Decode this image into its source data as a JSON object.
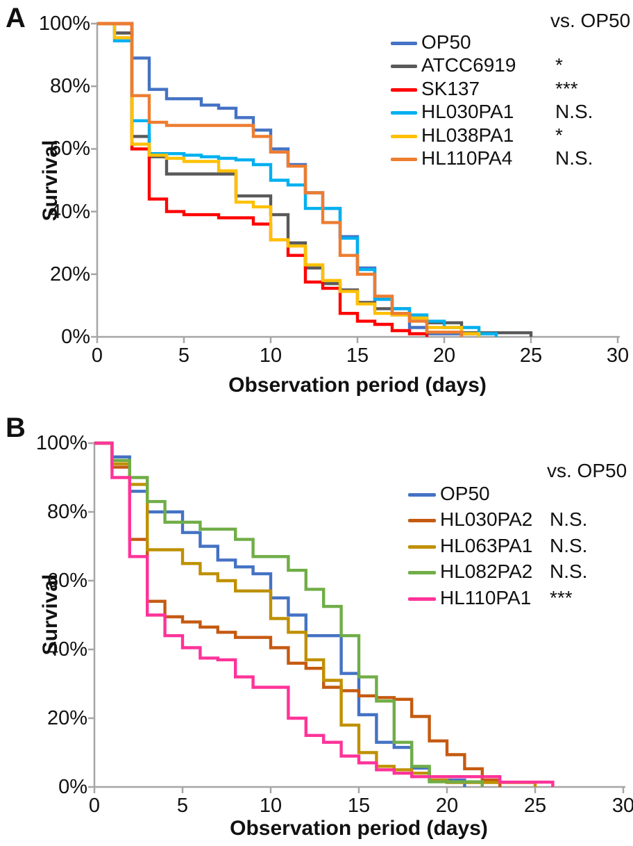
{
  "chart_data": [
    {
      "type": "line",
      "subtype": "survival-step-curve",
      "panel_label": "A",
      "legend_header": "vs. OP50",
      "xlabel": "Observation period (days)",
      "ylabel": "Survival",
      "xlim": [
        0,
        30
      ],
      "ylim": [
        0,
        100
      ],
      "x_ticks": [
        0,
        5,
        10,
        15,
        20,
        25,
        30
      ],
      "y_ticks": [
        0,
        20,
        40,
        60,
        80,
        100
      ],
      "y_tick_labels": [
        "0%",
        "20%",
        "40%",
        "60%",
        "80%",
        "100%"
      ],
      "grid": false,
      "legend_position": "upper-right",
      "values_note": "survival percent at each day index; value holds until next day (step-after)",
      "series": [
        {
          "name": "OP50",
          "significance": "",
          "color": "#4472C4",
          "values": [
            100,
            100,
            89,
            79,
            76,
            76,
            74,
            73,
            70,
            66,
            60,
            55,
            46,
            41,
            32,
            22,
            12,
            7,
            3,
            1,
            1,
            1,
            0
          ]
        },
        {
          "name": "ATCC6919",
          "significance": "*",
          "color": "#595959",
          "values": [
            100,
            97,
            64,
            57.5,
            52,
            52,
            52,
            52,
            45,
            45,
            39,
            30,
            22,
            17,
            15,
            11,
            9,
            9,
            6,
            4.5,
            4.5,
            1.3,
            1.3,
            1.3,
            1.3,
            0
          ]
        },
        {
          "name": "SK137",
          "significance": "***",
          "color": "#FF0000",
          "values": [
            100,
            100,
            60,
            44,
            40,
            39,
            39,
            38,
            38,
            36,
            31,
            26,
            17.5,
            15.5,
            7.5,
            5,
            4,
            2,
            1,
            0
          ]
        },
        {
          "name": "HL030PA1",
          "significance": "N.S.",
          "color": "#00B0F0",
          "values": [
            100,
            94.5,
            69,
            58.5,
            58.5,
            58,
            57.5,
            57,
            56.5,
            55,
            50,
            48.5,
            41,
            41,
            31.5,
            21.5,
            12,
            9,
            7,
            5,
            3,
            3,
            1,
            0
          ]
        },
        {
          "name": "HL038PA1",
          "significance": "*",
          "color": "#FFC000",
          "values": [
            100,
            95.5,
            61.5,
            58,
            57,
            56,
            56,
            53,
            43,
            41.5,
            31,
            29,
            23,
            18,
            14.5,
            10.5,
            7.5,
            7,
            6,
            3,
            3,
            1,
            0
          ]
        },
        {
          "name": "HL110PA4",
          "significance": "N.S.",
          "color": "#ED7D31",
          "values": [
            100,
            100,
            77,
            68.5,
            67.5,
            67.5,
            67.5,
            67.5,
            67.5,
            64,
            59,
            54.5,
            46,
            36.5,
            26,
            20,
            13,
            7.5,
            5,
            1.5,
            1.5,
            0
          ]
        }
      ]
    },
    {
      "type": "line",
      "subtype": "survival-step-curve",
      "panel_label": "B",
      "legend_header": "vs. OP50",
      "xlabel": "Observation period (days)",
      "ylabel": "Survival",
      "xlim": [
        0,
        30
      ],
      "ylim": [
        0,
        100
      ],
      "x_ticks": [
        0,
        5,
        10,
        15,
        20,
        25,
        30
      ],
      "y_ticks": [
        0,
        20,
        40,
        60,
        80,
        100
      ],
      "y_tick_labels": [
        "0%",
        "20%",
        "40%",
        "60%",
        "80%",
        "100%"
      ],
      "grid": false,
      "legend_position": "upper-right",
      "values_note": "survival percent at each day index; value holds until next day (step-after)",
      "series": [
        {
          "name": "OP50",
          "significance": "",
          "color": "#4472C4",
          "values": [
            100,
            96,
            86,
            80,
            80,
            74,
            70,
            66,
            64,
            62,
            55,
            50,
            44,
            44,
            33,
            21,
            13,
            11.5,
            5.5,
            2,
            2,
            0
          ]
        },
        {
          "name": "HL030PA2",
          "significance": "N.S.",
          "color": "#C55A11",
          "values": [
            100,
            93,
            72,
            54,
            49.5,
            48,
            46.5,
            45,
            43.5,
            43.5,
            40.5,
            36,
            34.5,
            29,
            28,
            26.5,
            26,
            25.5,
            20.5,
            13.4,
            9.4,
            5.3,
            2,
            0
          ]
        },
        {
          "name": "HL063PA1",
          "significance": "N.S.",
          "color": "#BF9000",
          "values": [
            100,
            94,
            88,
            69,
            69,
            65,
            62,
            60,
            57,
            57,
            49,
            45,
            37,
            31,
            18,
            10,
            6,
            5,
            4,
            2,
            1.3,
            1.3,
            1.3,
            1.3,
            1.3,
            0
          ]
        },
        {
          "name": "HL082PA2",
          "significance": "N.S.",
          "color": "#70AD47",
          "values": [
            100,
            95,
            90,
            83,
            77,
            77,
            75,
            75,
            72,
            67,
            67,
            63,
            57.5,
            52.5,
            44,
            32,
            25,
            13,
            6,
            1.5,
            1.5,
            1.5,
            0
          ]
        },
        {
          "name": "HL110PA1",
          "significance": "***",
          "color": "#FF3399",
          "values": [
            100,
            90,
            67,
            50,
            44,
            40.5,
            37.5,
            37,
            32,
            29,
            29,
            20,
            15,
            13,
            9,
            7,
            5,
            4,
            3,
            3,
            3,
            3,
            3,
            1.4,
            1.4,
            1.4,
            0
          ]
        }
      ]
    }
  ]
}
